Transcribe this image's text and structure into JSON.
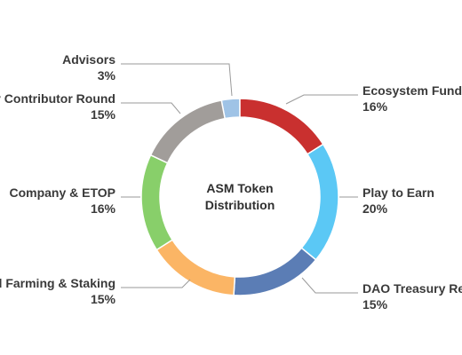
{
  "chart_data": {
    "type": "pie",
    "title": "ASM Token Distribution",
    "title_lines": [
      "ASM Token",
      "Distribution"
    ],
    "categories": [
      "Advisors",
      "Ecosystem Fund",
      "Play to Earn",
      "DAO Treasury Reserve",
      "Yield Farming & Staking",
      "Company & ETOP",
      "Early Contributor Round"
    ],
    "visible_labels": [
      "Advisors",
      "Ecosystem Fund",
      "Play to Earn",
      "DAO Treasury Re",
      "d Farming & Staking",
      "Company & ETOP",
      "y Contributor Round"
    ],
    "values": [
      3,
      16,
      20,
      15,
      15,
      16,
      15
    ],
    "value_labels": [
      "3%",
      "16%",
      "20%",
      "15%",
      "15%",
      "16%",
      "15%"
    ],
    "colors": [
      "#9fc3e6",
      "#c9302f",
      "#5bc8f5",
      "#5b7db5",
      "#fbb565",
      "#88cf6a",
      "#a19d9a"
    ],
    "style": "donut",
    "legend": "none"
  }
}
